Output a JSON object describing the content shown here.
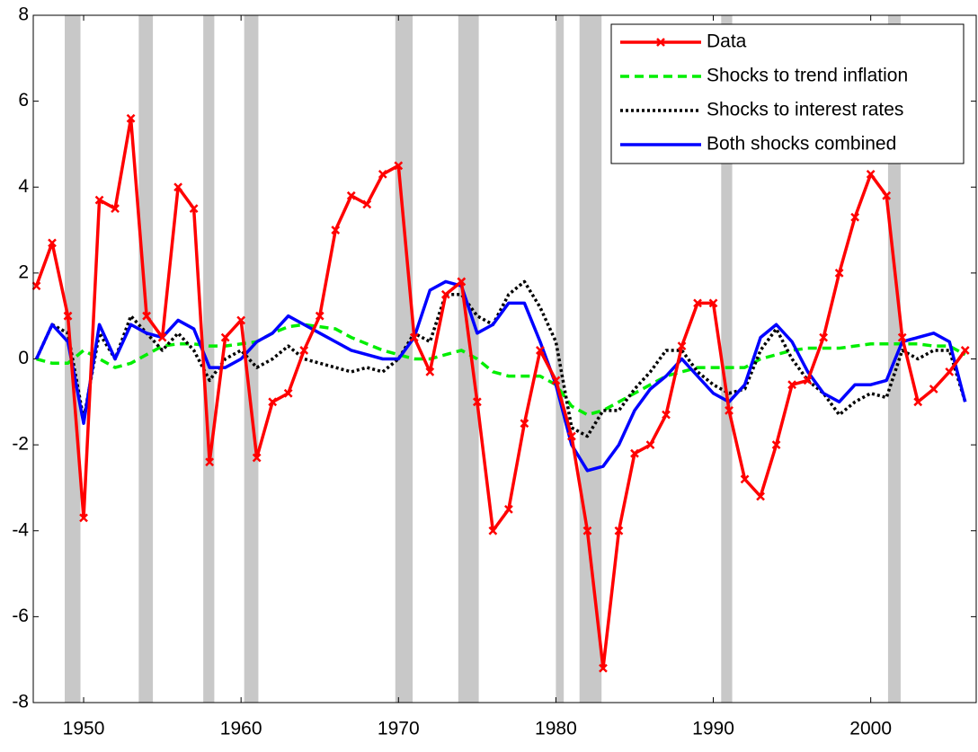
{
  "chart_data": {
    "type": "line",
    "x": [
      1947,
      1948,
      1949,
      1950,
      1951,
      1952,
      1953,
      1954,
      1955,
      1956,
      1957,
      1958,
      1959,
      1960,
      1961,
      1962,
      1963,
      1964,
      1965,
      1966,
      1967,
      1968,
      1969,
      1970,
      1971,
      1972,
      1973,
      1974,
      1975,
      1976,
      1977,
      1978,
      1979,
      1980,
      1981,
      1982,
      1983,
      1984,
      1985,
      1986,
      1987,
      1988,
      1989,
      1990,
      1991,
      1992,
      1993,
      1994,
      1995,
      1996,
      1997,
      1998,
      1999,
      2000,
      2001,
      2002,
      2003,
      2004,
      2005,
      2006
    ],
    "series": [
      {
        "name": "Data",
        "color": "#ff0000",
        "style": "solid-marker",
        "values": [
          1.7,
          2.7,
          1.0,
          -3.7,
          3.7,
          3.5,
          5.6,
          1.0,
          0.5,
          4.0,
          3.5,
          -2.4,
          0.5,
          0.9,
          -2.3,
          -1.0,
          -0.8,
          0.2,
          1.0,
          3.0,
          3.8,
          3.6,
          4.3,
          4.5,
          0.5,
          -0.3,
          1.5,
          1.8,
          -1.0,
          -4.0,
          -3.5,
          -1.5,
          0.2,
          -0.5,
          -1.8,
          -4.0,
          -7.2,
          -4.0,
          -2.2,
          -2.0,
          -1.3,
          0.3,
          1.3,
          1.3,
          -1.2,
          -2.8,
          -3.2,
          -2.0,
          -0.6,
          -0.5,
          0.5,
          2.0,
          3.3,
          4.3,
          3.8,
          0.5,
          -1.0,
          -0.7,
          -0.3,
          0.2
        ]
      },
      {
        "name": "Shocks to trend inflation",
        "color": "#00ee00",
        "style": "dashed",
        "values": [
          0,
          -0.1,
          -0.1,
          0.2,
          0,
          -0.2,
          -0.1,
          0.1,
          0.3,
          0.35,
          0.35,
          0.3,
          0.3,
          0.35,
          0.4,
          0.6,
          0.75,
          0.8,
          0.75,
          0.7,
          0.5,
          0.35,
          0.2,
          0.1,
          0,
          0,
          0.1,
          0.2,
          0,
          -0.3,
          -0.4,
          -0.4,
          -0.4,
          -0.6,
          -1.1,
          -1.3,
          -1.2,
          -1.0,
          -0.8,
          -0.6,
          -0.4,
          -0.3,
          -0.2,
          -0.2,
          -0.2,
          -0.2,
          0,
          0.1,
          0.2,
          0.25,
          0.25,
          0.25,
          0.3,
          0.35,
          0.35,
          0.35,
          0.35,
          0.3,
          0.3,
          0.1
        ]
      },
      {
        "name": "Shocks to interest rates",
        "color": "#000000",
        "style": "dotted",
        "values": [
          0,
          0.8,
          0.6,
          -1.4,
          0.6,
          0,
          1.0,
          0.6,
          0.2,
          0.6,
          0.2,
          -0.5,
          0,
          0.2,
          -0.2,
          0,
          0.3,
          0,
          -0.1,
          -0.2,
          -0.3,
          -0.2,
          -0.3,
          0,
          0.6,
          0.4,
          1.5,
          1.5,
          1.0,
          0.8,
          1.5,
          1.8,
          1.2,
          0.4,
          -1.6,
          -1.8,
          -1.2,
          -1.2,
          -0.7,
          -0.3,
          0.2,
          0.2,
          -0.3,
          -0.6,
          -0.8,
          -0.7,
          0.2,
          0.7,
          0,
          -0.5,
          -0.8,
          -1.3,
          -1.0,
          -0.8,
          -0.9,
          0.2,
          0,
          0.2,
          0.2,
          -1.0
        ]
      },
      {
        "name": "Both shocks combined",
        "color": "#0000ff",
        "style": "solid",
        "values": [
          0,
          0.8,
          0.4,
          -1.5,
          0.8,
          0,
          0.8,
          0.6,
          0.5,
          0.9,
          0.7,
          -0.2,
          -0.2,
          0,
          0.4,
          0.6,
          1.0,
          0.8,
          0.6,
          0.4,
          0.2,
          0.1,
          0,
          0,
          0.5,
          1.6,
          1.8,
          1.7,
          0.6,
          0.8,
          1.3,
          1.3,
          0.4,
          -0.6,
          -2.0,
          -2.6,
          -2.5,
          -2.0,
          -1.2,
          -0.7,
          -0.4,
          0,
          -0.4,
          -0.8,
          -1.0,
          -0.6,
          0.5,
          0.8,
          0.4,
          -0.3,
          -0.8,
          -1.0,
          -0.6,
          -0.6,
          -0.5,
          0.4,
          0.5,
          0.6,
          0.4,
          -1.0
        ]
      }
    ],
    "shaded_regions": [
      [
        1948.8,
        1949.8
      ],
      [
        1953.5,
        1954.4
      ],
      [
        1957.6,
        1958.3
      ],
      [
        1960.2,
        1961.1
      ],
      [
        1969.8,
        1970.9
      ],
      [
        1973.8,
        1975.1
      ],
      [
        1980.0,
        1980.5
      ],
      [
        1981.5,
        1982.9
      ],
      [
        1990.5,
        1991.2
      ],
      [
        2001.1,
        2001.9
      ]
    ],
    "shade_color": "#c8c8c8",
    "xlim": [
      1946.8,
      2006.7
    ],
    "xticks": [
      1950,
      1960,
      1970,
      1980,
      1990,
      2000
    ],
    "ylim": [
      -8,
      8
    ],
    "yticks": [
      -8,
      -6,
      -4,
      -2,
      0,
      2,
      4,
      6,
      8
    ],
    "legend": "upper right"
  }
}
